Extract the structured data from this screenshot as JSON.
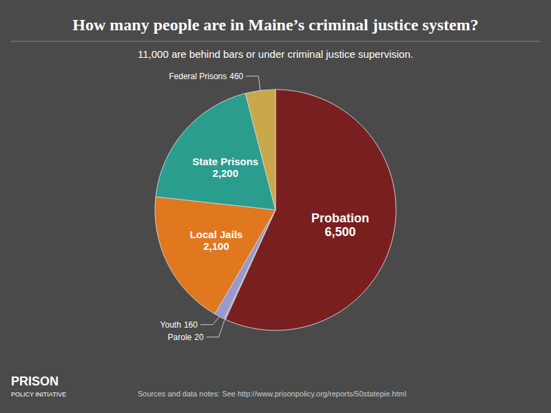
{
  "chart_data": {
    "type": "pie",
    "title": "How many people are in Maine’s criminal justice system?",
    "subtitle": "11,000 are behind bars or under criminal justice supervision.",
    "categories": [
      "Probation",
      "Parole",
      "Youth",
      "Local Jails",
      "State Prisons",
      "Federal Prisons"
    ],
    "values": [
      6500,
      20,
      160,
      2100,
      2200,
      460
    ],
    "value_labels": [
      "6,500",
      "20",
      "160",
      "2,100",
      "2,200",
      "460"
    ],
    "colors": [
      "#7a1f1f",
      "#9999cc",
      "#9999cc",
      "#e07820",
      "#2a9d8f",
      "#c9a84c"
    ],
    "data_labels": true,
    "source": "Sources and data notes: See http://www.prisonpolicy.org/reports/50statepie.html",
    "logo": [
      "PRISON",
      "POLICY INITIATIVE"
    ]
  }
}
